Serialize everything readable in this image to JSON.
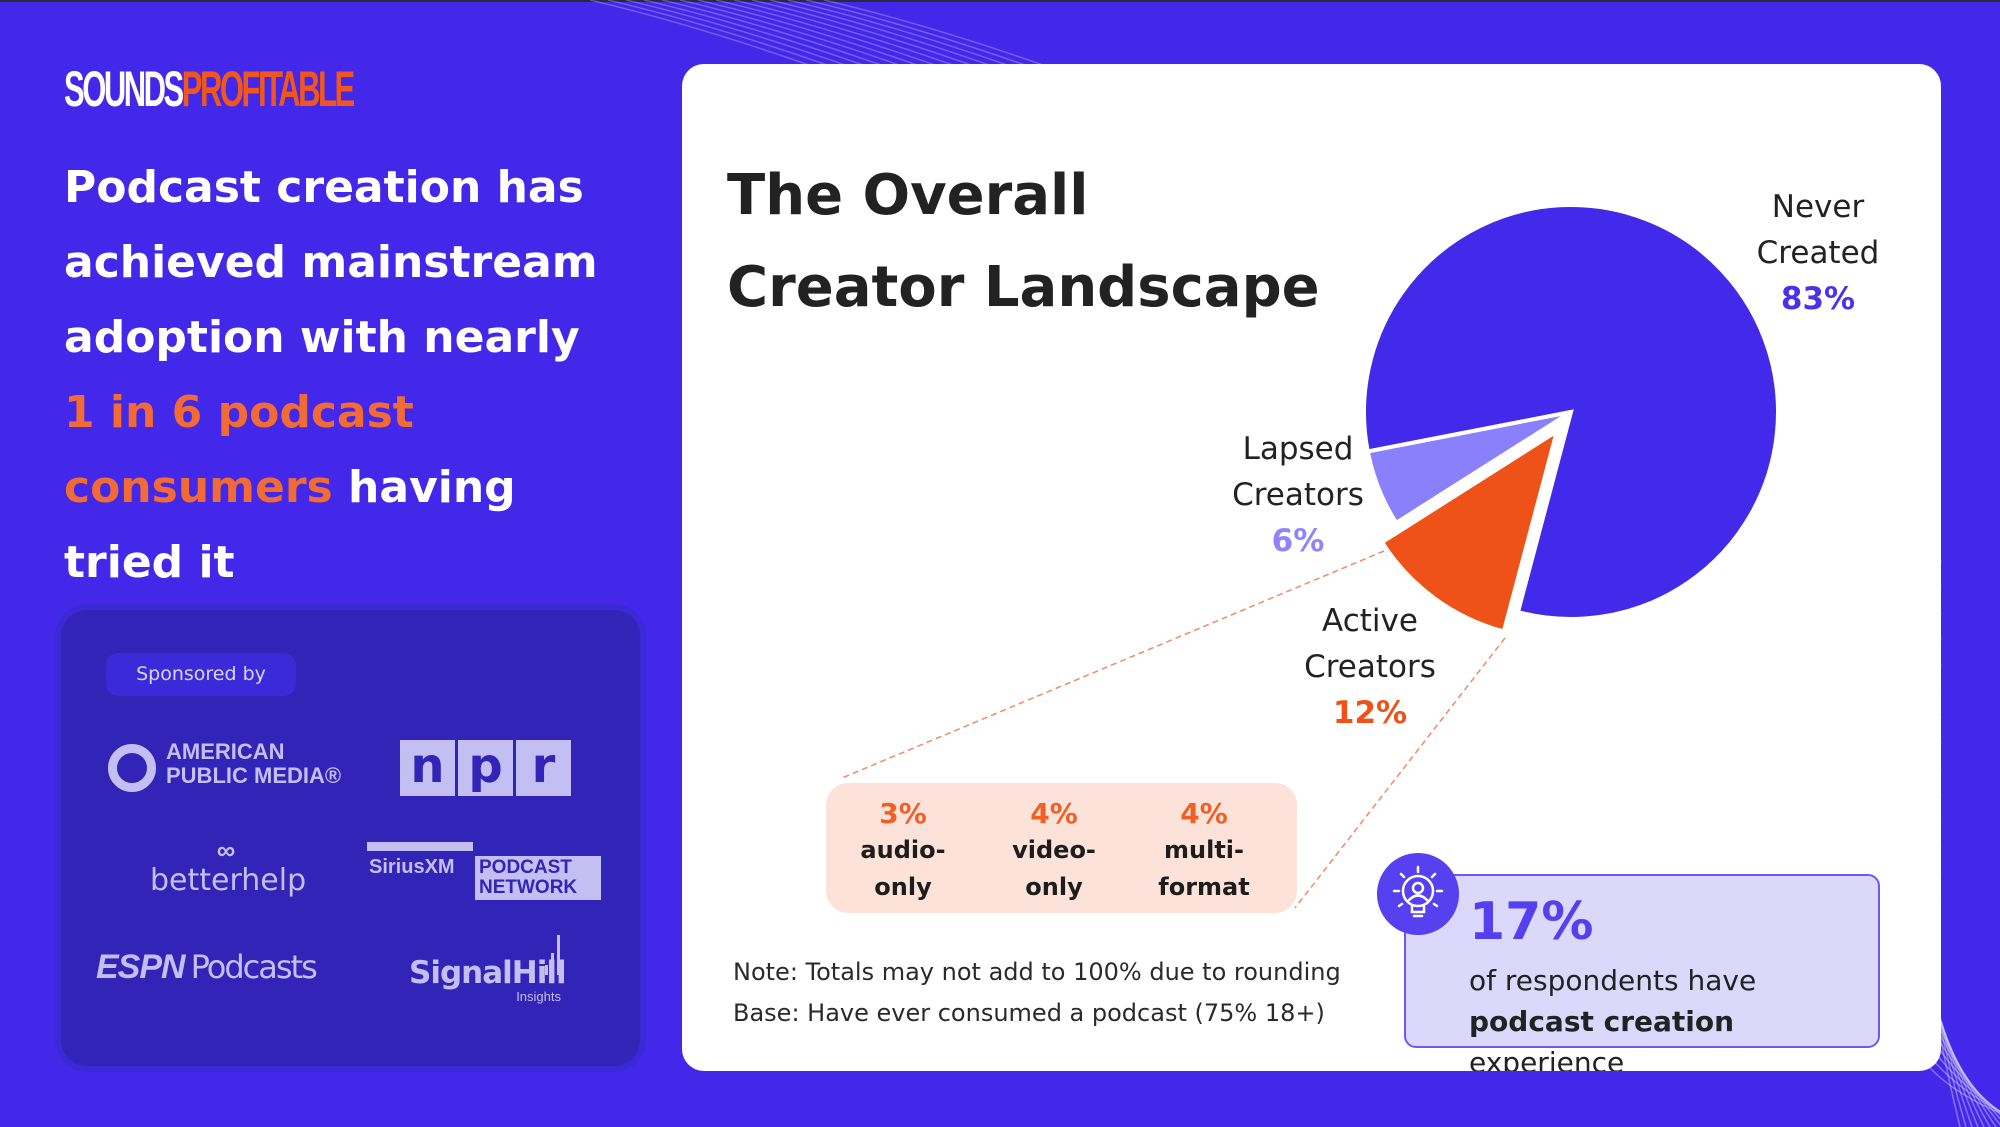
{
  "brand": {
    "logo_white": "SOUNDS",
    "logo_orange": "PROFITABLE",
    "colors": {
      "bg": "#4328ea",
      "accent": "#f26a34"
    }
  },
  "headline": {
    "part1": "Podcast creation has achieved mainstream adoption with nearly ",
    "highlight": "1 in 6 podcast consumers",
    "part2": " having tried it"
  },
  "sponsors": {
    "label": "Sponsored by",
    "apm": [
      "AMERICAN",
      "PUBLIC MEDIA®"
    ],
    "npr": [
      "n",
      "p",
      "r"
    ],
    "betterhelp": "betterhelp",
    "siriusxm": {
      "name": "SiriusXM",
      "podcast": "PODCAST",
      "network": "NETWORK"
    },
    "espn": {
      "brand": "ESPN",
      "rest": "Podcasts"
    },
    "signalhill": {
      "name": "SignalHill",
      "sub": "Insights"
    }
  },
  "chart_data": {
    "type": "pie",
    "title": "The Overall Creator Landscape",
    "categories": [
      "Never Created",
      "Active Creators",
      "Lapsed Creators"
    ],
    "values": [
      83,
      12,
      6
    ],
    "value_labels": [
      "83%",
      "12%",
      "6%"
    ],
    "colors": [
      "#4329ea",
      "#ef5218",
      "#8b80fb"
    ],
    "label_colors": [
      "#4a32ea",
      "#ef5218",
      "#8f84fb"
    ],
    "exploded": "Active Creators",
    "breakdown": {
      "of": "Active Creators",
      "items": [
        {
          "value": "3%",
          "label1": "audio-",
          "label2": "only"
        },
        {
          "value": "4%",
          "label1": "video-",
          "label2": "only"
        },
        {
          "value": "4%",
          "label1": "multi-",
          "label2": "format"
        }
      ]
    }
  },
  "notes": [
    "Note: Totals may not add to 100% due to rounding",
    "Base: Have ever consumed a podcast (75% 18+)"
  ],
  "callout": {
    "value": "17%",
    "line1": "of respondents have",
    "bold": "podcast creation",
    "rest": " experience",
    "icon": "lightbulb-person-icon"
  }
}
